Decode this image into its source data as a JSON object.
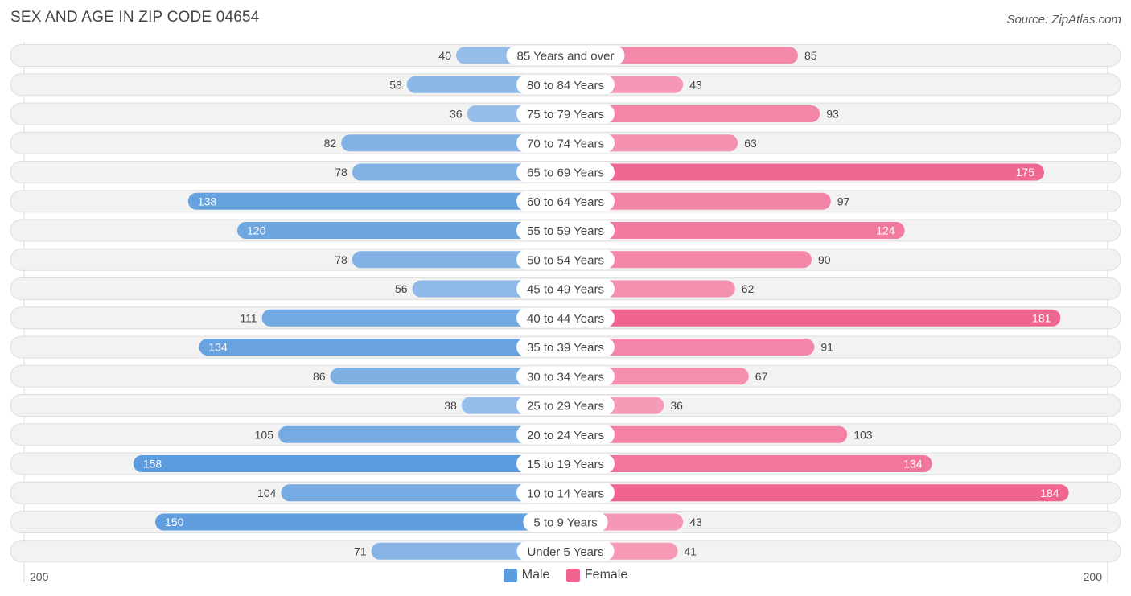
{
  "title": "SEX AND AGE IN ZIP CODE 04654",
  "source": "Source: ZipAtlas.com",
  "legend": {
    "male_label": "Male",
    "female_label": "Female"
  },
  "axis": {
    "left_label": "200",
    "right_label": "200"
  },
  "colors": {
    "male": "#5b9bde",
    "male_light": "#a8c8ec",
    "female": "#f0648f",
    "female_light": "#f6a8c0"
  },
  "chart_data": {
    "type": "bar",
    "orientation": "horizontal-diverging",
    "title": "SEX AND AGE IN ZIP CODE 04654",
    "categories": [
      "85 Years and over",
      "80 to 84 Years",
      "75 to 79 Years",
      "70 to 74 Years",
      "65 to 69 Years",
      "60 to 64 Years",
      "55 to 59 Years",
      "50 to 54 Years",
      "45 to 49 Years",
      "40 to 44 Years",
      "35 to 39 Years",
      "30 to 34 Years",
      "25 to 29 Years",
      "20 to 24 Years",
      "15 to 19 Years",
      "10 to 14 Years",
      "5 to 9 Years",
      "Under 5 Years"
    ],
    "series": [
      {
        "name": "Male",
        "values": [
          40,
          58,
          36,
          82,
          78,
          138,
          120,
          78,
          56,
          111,
          134,
          86,
          38,
          105,
          158,
          104,
          150,
          71
        ]
      },
      {
        "name": "Female",
        "values": [
          85,
          43,
          93,
          63,
          175,
          97,
          124,
          90,
          62,
          181,
          91,
          67,
          36,
          103,
          134,
          184,
          43,
          41
        ]
      }
    ],
    "xlim": [
      -200,
      200
    ],
    "legend_position": "bottom-center",
    "grid": false
  }
}
